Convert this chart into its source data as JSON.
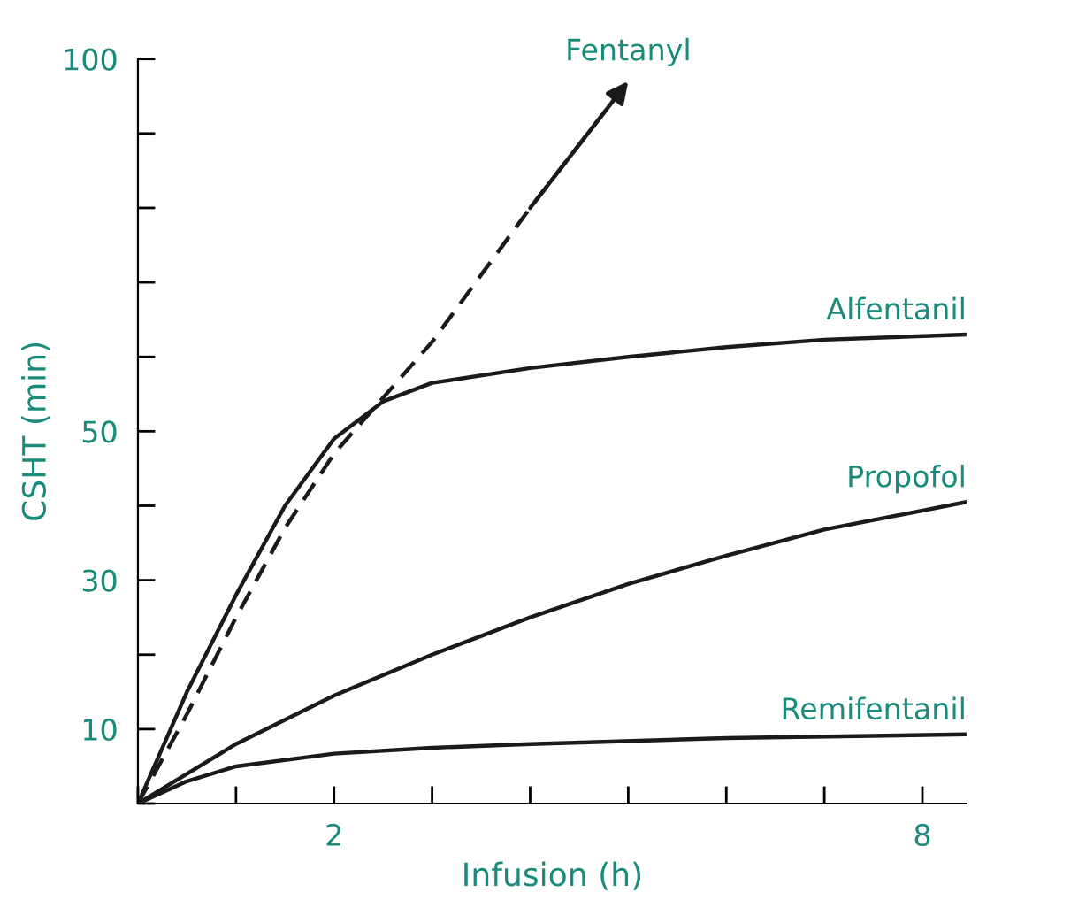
{
  "chart_data": {
    "type": "line",
    "xlabel": "Infusion (h)",
    "ylabel": "CSHT (min)",
    "xlim": [
      0,
      8.45
    ],
    "ylim": [
      0,
      100
    ],
    "xticks": [
      {
        "value": 0,
        "label": null
      },
      {
        "value": 1,
        "label": null
      },
      {
        "value": 2,
        "label": "2"
      },
      {
        "value": 3,
        "label": null
      },
      {
        "value": 4,
        "label": null
      },
      {
        "value": 5,
        "label": null
      },
      {
        "value": 6,
        "label": null
      },
      {
        "value": 7,
        "label": null
      },
      {
        "value": 8,
        "label": "8"
      }
    ],
    "yticks": [
      {
        "value": 0,
        "label": null
      },
      {
        "value": 10,
        "label": "10"
      },
      {
        "value": 20,
        "label": null
      },
      {
        "value": 30,
        "label": "30"
      },
      {
        "value": 40,
        "label": null
      },
      {
        "value": 50,
        "label": "50"
      },
      {
        "value": 60,
        "label": null
      },
      {
        "value": 70,
        "label": null
      },
      {
        "value": 80,
        "label": null
      },
      {
        "value": 90,
        "label": null
      },
      {
        "value": 100,
        "label": "100"
      }
    ],
    "grid": false,
    "legend": false,
    "marker": "none",
    "series": [
      {
        "name": "Fentanyl",
        "color": "#1a1a1a",
        "line_style": "dashed",
        "x": [
          0,
          0.5,
          1,
          1.5,
          2,
          3,
          4,
          5
        ],
        "values": [
          0,
          12,
          25,
          37,
          47,
          62,
          80,
          97
        ]
      },
      {
        "name": "Alfentanil",
        "color": "#1a1a1a",
        "line_style": "solid",
        "x": [
          0,
          0.5,
          1,
          1.5,
          2,
          2.5,
          3,
          4,
          5,
          6,
          7,
          8.45
        ],
        "values": [
          0,
          15,
          28,
          40,
          49,
          54,
          56.5,
          58.5,
          60,
          61.3,
          62.3,
          63
        ]
      },
      {
        "name": "Propofol",
        "color": "#1a1a1a",
        "line_style": "solid",
        "x": [
          0,
          1,
          2,
          3,
          4,
          5,
          6,
          7,
          8.45
        ],
        "values": [
          0,
          8,
          14.5,
          20,
          25,
          29.5,
          33.3,
          36.8,
          40.5
        ]
      },
      {
        "name": "Remifentanil",
        "color": "#1a1a1a",
        "line_style": "solid",
        "x": [
          0,
          0.5,
          1,
          2,
          3,
          4,
          6,
          8.45
        ],
        "values": [
          0,
          3,
          5,
          6.7,
          7.5,
          8,
          8.8,
          9.3
        ]
      }
    ]
  }
}
